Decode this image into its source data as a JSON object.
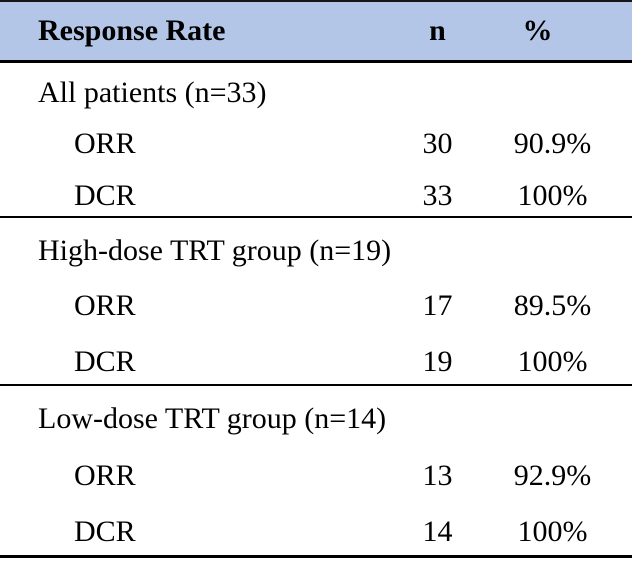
{
  "table": {
    "title_semantic": "Tumor response rate table",
    "colors": {
      "header_bg": "#b4c6e7",
      "rule": "#000000"
    },
    "header": {
      "col1": "Response Rate",
      "col2": "n",
      "col3": "%"
    },
    "sections": [
      {
        "title": "All patients (n=33)",
        "rows": [
          {
            "label": "ORR",
            "n": "30",
            "pct": "90.9%"
          },
          {
            "label": "DCR",
            "n": "33",
            "pct": "100%"
          }
        ]
      },
      {
        "title": "High-dose TRT group (n=19)",
        "rows": [
          {
            "label": "ORR",
            "n": "17",
            "pct": "89.5%"
          },
          {
            "label": "DCR",
            "n": "19",
            "pct": "100%"
          }
        ]
      },
      {
        "title": "Low-dose TRT group (n=14)",
        "rows": [
          {
            "label": "ORR",
            "n": "13",
            "pct": "92.9%"
          },
          {
            "label": "DCR",
            "n": "14",
            "pct": "100%"
          }
        ]
      }
    ]
  }
}
